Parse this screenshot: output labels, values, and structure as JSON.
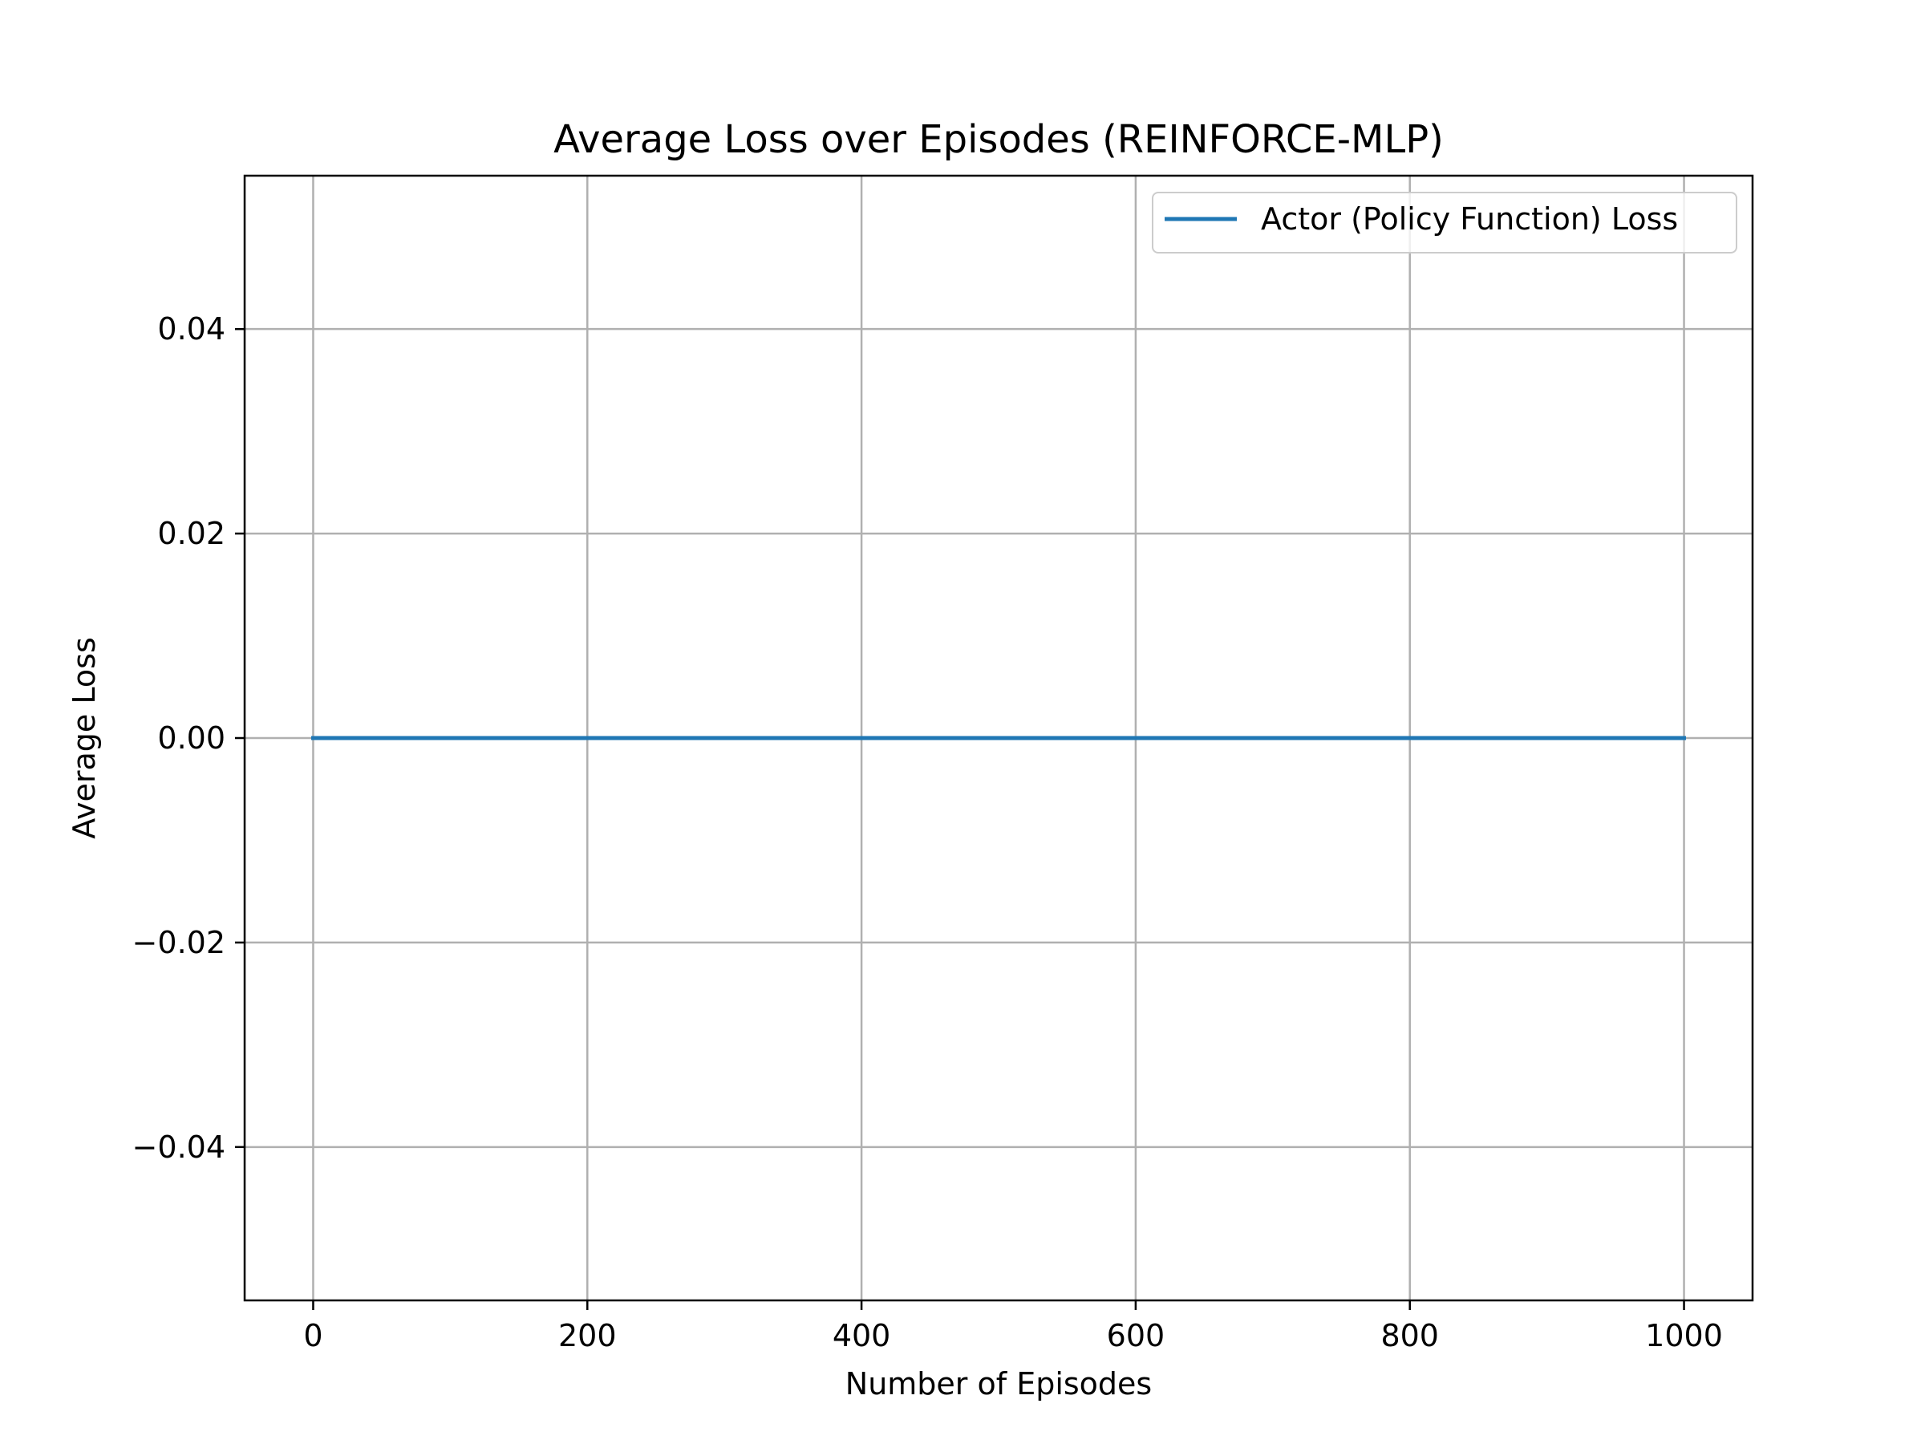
{
  "chart_data": {
    "type": "line",
    "title": "Average Loss over Episodes (REINFORCE-MLP)",
    "xlabel": "Number of Episodes",
    "ylabel": "Average Loss",
    "xlim": [
      -50,
      1050
    ],
    "ylim": [
      -0.055,
      0.055
    ],
    "xticks": [
      0,
      200,
      400,
      600,
      800,
      1000
    ],
    "xtick_labels": [
      "0",
      "200",
      "400",
      "600",
      "800",
      "1000"
    ],
    "yticks": [
      -0.04,
      -0.02,
      0.0,
      0.02,
      0.04
    ],
    "ytick_labels": [
      "−0.04",
      "−0.02",
      "0.00",
      "0.02",
      "0.04"
    ],
    "grid": true,
    "legend_position": "top-right",
    "series": [
      {
        "name": "Actor (Policy Function) Loss",
        "color": "#1f77b4",
        "x": [
          0,
          1000
        ],
        "y": [
          0.0,
          0.0
        ]
      }
    ]
  }
}
